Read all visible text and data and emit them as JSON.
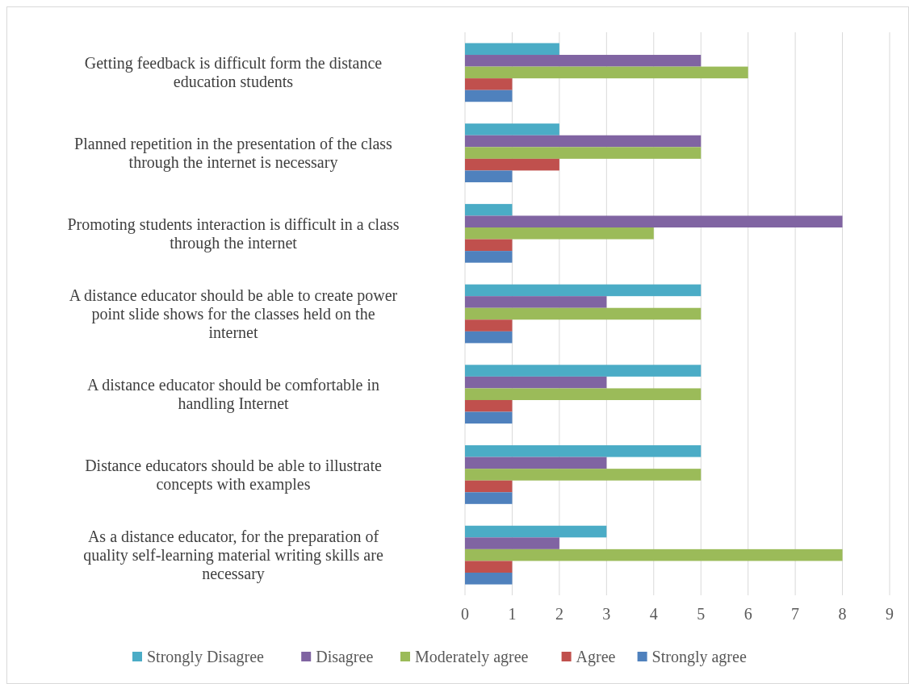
{
  "chart_data": {
    "type": "bar",
    "orientation": "horizontal",
    "categories": [
      "Getting feedback is difficult form the distance\neducation students",
      "Planned repetition in the presentation of the class\nthrough the internet is necessary",
      "Promoting students interaction is difficult in a class\nthrough the internet",
      "A distance educator should  be able to create power\npoint slide shows for the classes held on the\ninternet",
      "A distance educator should be comfortable in\nhandling Internet",
      "Distance educators should  be able to illustrate\nconcepts with examples",
      "As a distance educator, for the preparation of\nquality self-learning material writing skills are\nnecessary"
    ],
    "series": [
      {
        "name": "Strongly Disagree",
        "color": "#4bacc6",
        "values": [
          2,
          2,
          1,
          5,
          5,
          5,
          3
        ]
      },
      {
        "name": "Disagree",
        "color": "#8064a2",
        "values": [
          5,
          5,
          8,
          3,
          3,
          3,
          2
        ]
      },
      {
        "name": "Moderately agree",
        "color": "#9bbb59",
        "values": [
          6,
          5,
          4,
          5,
          5,
          5,
          8
        ]
      },
      {
        "name": "Agree",
        "color": "#c0504d",
        "values": [
          1,
          2,
          1,
          1,
          1,
          1,
          1
        ]
      },
      {
        "name": "Strongly agree",
        "color": "#4f81bd",
        "values": [
          1,
          1,
          1,
          1,
          1,
          1,
          1
        ]
      }
    ],
    "xlim": [
      0,
      9
    ],
    "xticks": [
      0,
      1,
      2,
      3,
      4,
      5,
      6,
      7,
      8,
      9
    ],
    "grid": "x",
    "legend": "bottom"
  }
}
